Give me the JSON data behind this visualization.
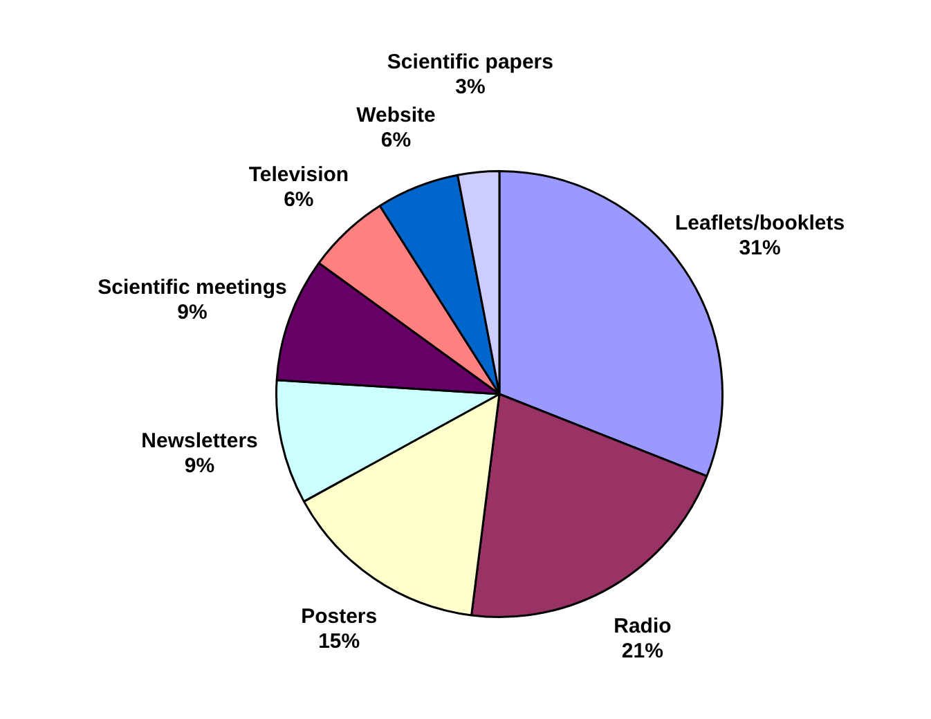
{
  "chart_data": {
    "type": "pie",
    "categories": [
      "Leaflets/booklets",
      "Radio",
      "Posters",
      "Newsletters",
      "Scientific meetings",
      "Television",
      "Website",
      "Scientific papers"
    ],
    "values": [
      31,
      21,
      15,
      9,
      9,
      6,
      6,
      3
    ],
    "colors": [
      "#9999ff",
      "#993366",
      "#ffffcc",
      "#ccffff",
      "#660066",
      "#ff8080",
      "#0066cc",
      "#ccccff"
    ],
    "value_labels": [
      "31%",
      "21%",
      "15%",
      "9%",
      "9%",
      "6%",
      "6%",
      "3%"
    ],
    "legend": false
  }
}
